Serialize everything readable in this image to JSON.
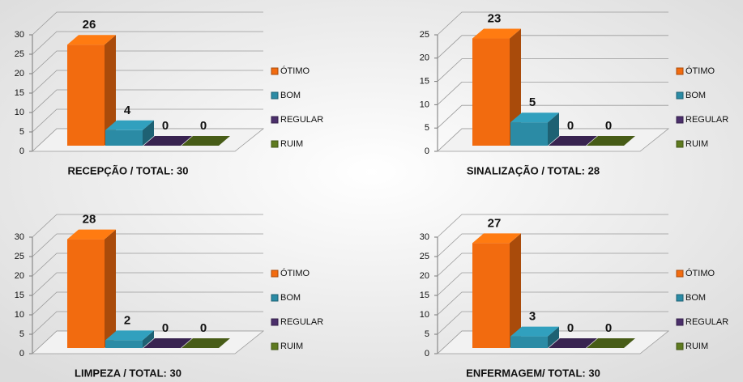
{
  "chart_data": [
    {
      "type": "bar3d",
      "title": "RECEPÇÃO / TOTAL: 30",
      "categories": [
        "ÓTIMO",
        "BOM",
        "REGULAR",
        "RUIM"
      ],
      "values": [
        26,
        4,
        0,
        0
      ],
      "colors": [
        "#f26b0f",
        "#2b8ba5",
        "#4b2f6b",
        "#5e7a1f"
      ],
      "ylim": [
        0,
        30
      ],
      "yticks": [
        0,
        5,
        10,
        15,
        20,
        25,
        30
      ],
      "grid": true
    },
    {
      "type": "bar3d",
      "title": "SINALIZAÇÃO / TOTAL: 28",
      "categories": [
        "ÓTIMO",
        "BOM",
        "REGULAR",
        "RUIM"
      ],
      "values": [
        23,
        5,
        0,
        0
      ],
      "colors": [
        "#f26b0f",
        "#2b8ba5",
        "#4b2f6b",
        "#5e7a1f"
      ],
      "ylim": [
        0,
        25
      ],
      "yticks": [
        0,
        5,
        10,
        15,
        20,
        25
      ],
      "grid": true
    },
    {
      "type": "bar3d",
      "title": "LIMPEZA / TOTAL: 30",
      "categories": [
        "ÓTIMO",
        "BOM",
        "REGULAR",
        "RUIM"
      ],
      "values": [
        28,
        2,
        0,
        0
      ],
      "colors": [
        "#f26b0f",
        "#2b8ba5",
        "#4b2f6b",
        "#5e7a1f"
      ],
      "ylim": [
        0,
        30
      ],
      "yticks": [
        0,
        5,
        10,
        15,
        20,
        25,
        30
      ],
      "grid": true
    },
    {
      "type": "bar3d",
      "title": "ENFERMAGEM/ TOTAL: 30",
      "categories": [
        "ÓTIMO",
        "BOM",
        "REGULAR",
        "RUIM"
      ],
      "values": [
        27,
        3,
        0,
        0
      ],
      "colors": [
        "#f26b0f",
        "#2b8ba5",
        "#4b2f6b",
        "#5e7a1f"
      ],
      "ylim": [
        0,
        30
      ],
      "yticks": [
        0,
        5,
        10,
        15,
        20,
        25,
        30
      ],
      "grid": true
    }
  ]
}
